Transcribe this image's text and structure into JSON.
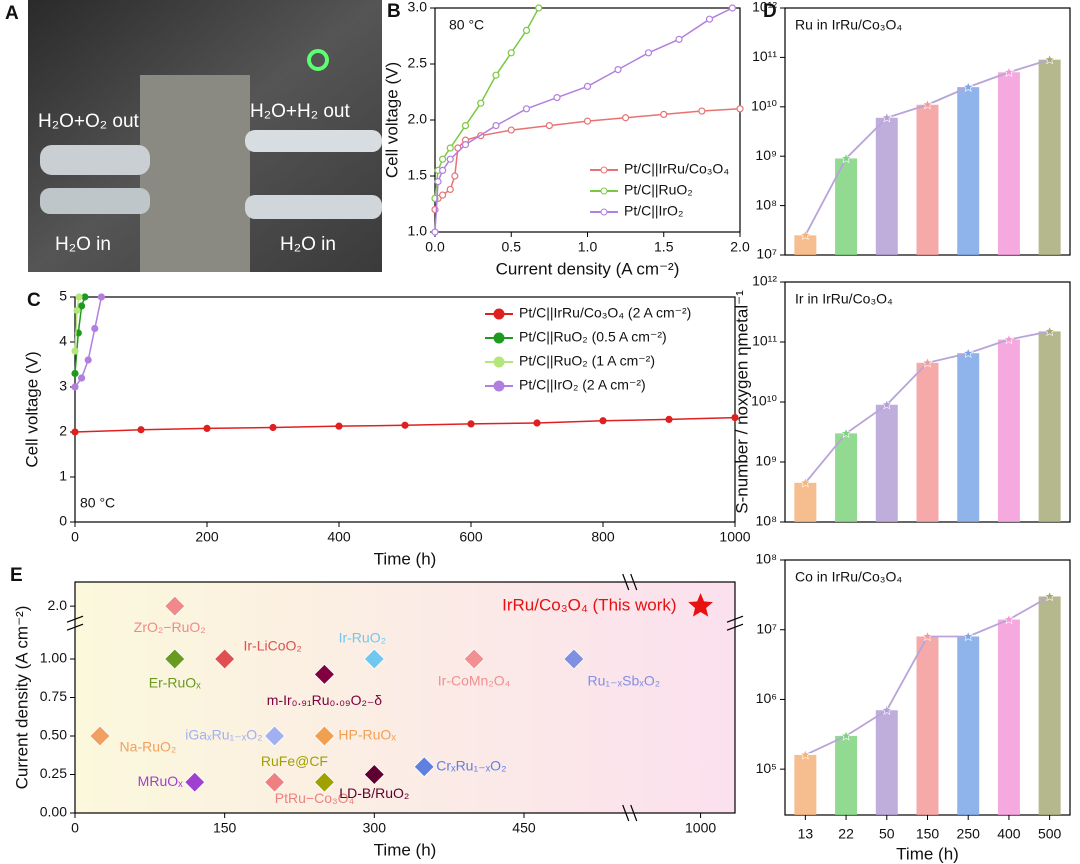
{
  "photo": {
    "panel": "A",
    "labels": [
      "H₂O+O₂ out",
      "H₂O+H₂ out",
      "H₂O in",
      "H₂O in"
    ]
  },
  "chart_data": [
    {
      "type": "line",
      "panel": "B",
      "annotation": "80 °C",
      "xlabel": "Current density (A cm⁻²)",
      "ylabel": "Cell voltage (V)",
      "xlim": [
        0,
        2
      ],
      "ylim": [
        1,
        3
      ],
      "xticks": [
        {
          "value": 0,
          "label": "0.0"
        },
        {
          "value": 0.5,
          "label": "0.5"
        },
        {
          "value": 1,
          "label": "1.0"
        },
        {
          "value": 1.5,
          "label": "1.5"
        },
        {
          "value": 2,
          "label": "2.0"
        }
      ],
      "yticks": [
        {
          "value": 1,
          "label": "1.0"
        },
        {
          "value": 1.5,
          "label": "1.5"
        },
        {
          "value": 2,
          "label": "2.0"
        },
        {
          "value": 2.5,
          "label": "2.5"
        },
        {
          "value": 3,
          "label": "3.0"
        }
      ],
      "legend": "lower right",
      "series": [
        {
          "name": "Pt/C||IrRu/Co₃O₄",
          "color": "#e87272",
          "x": [
            0,
            0.02,
            0.05,
            0.1,
            0.13,
            0.15,
            0.2,
            0.3,
            0.5,
            0.75,
            1.0,
            1.25,
            1.5,
            1.75,
            2.0
          ],
          "values": [
            1.2,
            1.3,
            1.33,
            1.38,
            1.5,
            1.75,
            1.82,
            1.86,
            1.91,
            1.95,
            1.99,
            2.02,
            2.05,
            2.08,
            2.1
          ]
        },
        {
          "name": "Pt/C||RuO₂",
          "color": "#7ac943",
          "x": [
            0,
            0.02,
            0.05,
            0.1,
            0.2,
            0.3,
            0.4,
            0.5,
            0.6,
            0.68
          ],
          "values": [
            1.3,
            1.55,
            1.65,
            1.75,
            1.95,
            2.15,
            2.4,
            2.6,
            2.8,
            3.0
          ]
        },
        {
          "name": "Pt/C||IrO₂",
          "color": "#b07fe0",
          "x": [
            0,
            0.02,
            0.05,
            0.1,
            0.2,
            0.4,
            0.6,
            0.8,
            1.0,
            1.2,
            1.4,
            1.6,
            1.8,
            1.95
          ],
          "values": [
            1.0,
            1.45,
            1.55,
            1.65,
            1.78,
            1.95,
            2.1,
            2.2,
            2.3,
            2.45,
            2.6,
            2.72,
            2.9,
            3.0
          ]
        }
      ]
    },
    {
      "type": "line",
      "panel": "C",
      "annotation": "80 °C",
      "xlabel": "Time (h)",
      "ylabel": "Cell voltage (V)",
      "xlim": [
        0,
        1000
      ],
      "ylim": [
        0,
        5
      ],
      "xticks": [
        0,
        200,
        400,
        600,
        800,
        1000
      ],
      "yticks": [
        0,
        1,
        2,
        3,
        4,
        5
      ],
      "legend": "upper right",
      "series": [
        {
          "name": "Pt/C||IrRu/Co₃O₄ (2 A cm⁻²)",
          "color": "#e02020",
          "x": [
            0,
            100,
            200,
            300,
            400,
            500,
            600,
            700,
            800,
            900,
            1000
          ],
          "values": [
            2.0,
            2.05,
            2.08,
            2.1,
            2.13,
            2.15,
            2.18,
            2.2,
            2.25,
            2.28,
            2.32
          ]
        },
        {
          "name": "Pt/C||RuO₂ (0.5 A cm⁻²)",
          "color": "#1f9a1f",
          "x": [
            0,
            5,
            10,
            15
          ],
          "values": [
            3.3,
            4.2,
            4.8,
            5.0
          ]
        },
        {
          "name": "Pt/C||RuO₂ (1 A cm⁻²)",
          "color": "#b5e67a",
          "x": [
            0,
            3,
            6
          ],
          "values": [
            3.8,
            4.7,
            5.0
          ]
        },
        {
          "name": "Pt/C||IrO₂ (2 A cm⁻²)",
          "color": "#b07fe0",
          "x": [
            0,
            10,
            20,
            30,
            40
          ],
          "values": [
            3.0,
            3.2,
            3.6,
            4.3,
            5.0
          ]
        }
      ]
    },
    {
      "type": "bar",
      "panel": "D",
      "title": "Ru in IrRu/Co₃O₄",
      "yscale": "log",
      "ylim": [
        10000000.0,
        1000000000000.0
      ],
      "yticks": [
        {
          "value": 10000000.0,
          "label": "10⁷"
        },
        {
          "value": 100000000.0,
          "label": "10⁸"
        },
        {
          "value": 1000000000.0,
          "label": "10⁹"
        },
        {
          "value": 10000000000.0,
          "label": "10¹⁰"
        },
        {
          "value": 100000000000.0,
          "label": "10¹¹"
        },
        {
          "value": 1000000000000.0,
          "label": "10¹²"
        }
      ],
      "colors": [
        "#f5b27a",
        "#7fd37f",
        "#b49fd6",
        "#f59a9a",
        "#7ba7e8",
        "#f59ad8",
        "#a8ab78"
      ],
      "line_color": "#b9a3d9",
      "values": [
        25000000.0,
        900000000.0,
        6000000000.0,
        11000000000.0,
        25000000000.0,
        50000000000.0,
        90000000000.0
      ]
    },
    {
      "type": "bar",
      "ylabel": "S-number / noxygen ηmetal⁻¹",
      "title": "Ir in IrRu/Co₃O₄",
      "yscale": "log",
      "ylim": [
        100000000.0,
        1000000000000.0
      ],
      "yticks": [
        {
          "value": 100000000.0,
          "label": "10⁸"
        },
        {
          "value": 1000000000.0,
          "label": "10⁹"
        },
        {
          "value": 10000000000.0,
          "label": "10¹⁰"
        },
        {
          "value": 100000000000.0,
          "label": "10¹¹"
        },
        {
          "value": 1000000000000.0,
          "label": "10¹²"
        }
      ],
      "colors": [
        "#f5b27a",
        "#7fd37f",
        "#b49fd6",
        "#f59a9a",
        "#7ba7e8",
        "#f59ad8",
        "#a8ab78"
      ],
      "line_color": "#b9a3d9",
      "values": [
        450000000.0,
        3000000000.0,
        9000000000.0,
        45000000000.0,
        65000000000.0,
        110000000000.0,
        150000000000.0
      ]
    },
    {
      "type": "bar",
      "title": "Co in IrRu/Co₃O₄",
      "xlabel": "Time (h)",
      "yscale": "log",
      "ylim": [
        22000,
        100000000.0
      ],
      "categories": [
        "13",
        "22",
        "50",
        "150",
        "250",
        "400",
        "500"
      ],
      "yticks": [
        {
          "value": 100000.0,
          "label": "10⁵"
        },
        {
          "value": 1000000.0,
          "label": "10⁶"
        },
        {
          "value": 10000000.0,
          "label": "10⁷"
        },
        {
          "value": 100000000.0,
          "label": "10⁸"
        }
      ],
      "colors": [
        "#f5b27a",
        "#7fd37f",
        "#b49fd6",
        "#f59a9a",
        "#7ba7e8",
        "#f59ad8",
        "#a8ab78"
      ],
      "line_color": "#b9a3d9",
      "values": [
        160000.0,
        300000.0,
        700000.0,
        8000000.0,
        8000000.0,
        14000000.0,
        30000000.0
      ]
    },
    {
      "type": "scatter",
      "panel": "E",
      "xlabel": "Time (h)",
      "ylabel": "Current density (A cm⁻²)",
      "xlim": [
        0,
        1035
      ],
      "xbreak": [
        555,
        930
      ],
      "ylim": [
        0,
        2.2
      ],
      "ybreak": [
        1.2,
        1.9
      ],
      "xticks": [
        0,
        150,
        300,
        450,
        1000
      ],
      "yticks": [
        {
          "value": 0,
          "label": "0.00"
        },
        0.25,
        {
          "value": 0.5,
          "label": "0.50"
        },
        0.75,
        {
          "value": 1,
          "label": "1.00"
        },
        {
          "value": 2,
          "label": "2.0"
        }
      ],
      "points": [
        {
          "name": "ZrO₂−RuO₂",
          "x": 100,
          "y": 2.0,
          "color": "#f08a8a"
        },
        {
          "name": "Er-RuOₓ",
          "x": 100,
          "y": 1.0,
          "color": "#6a9a20"
        },
        {
          "name": "Ir-LiCoO₂",
          "x": 150,
          "y": 1.0,
          "color": "#e05050"
        },
        {
          "name": "m-Ir₀.₉₁Ru₀.₀₉O₂₋δ",
          "x": 250,
          "y": 0.9,
          "color": "#800040"
        },
        {
          "name": "Ir-RuO₂",
          "x": 300,
          "y": 1.0,
          "color": "#70c8f0"
        },
        {
          "name": "Ir-CoMn₂O₄",
          "x": 400,
          "y": 1.0,
          "color": "#f09090"
        },
        {
          "name": "Ru₁₋ₓSbₓO₂",
          "x": 500,
          "y": 1.0,
          "color": "#8090e0"
        },
        {
          "name": "Na-RuO₂",
          "x": 25,
          "y": 0.5,
          "color": "#f0a060"
        },
        {
          "name": "iGaₓRu₁₋ₓO₂",
          "x": 200,
          "y": 0.5,
          "color": "#a0b0f0"
        },
        {
          "name": "HP-RuOₓ",
          "x": 250,
          "y": 0.5,
          "color": "#f0a050"
        },
        {
          "name": "RuFe@CF",
          "x": 250,
          "y": 0.2,
          "color": "#a0a000"
        },
        {
          "name": "MRuOₓ",
          "x": 120,
          "y": 0.2,
          "color": "#a040d0"
        },
        {
          "name": "PtRu−Co₃O₄",
          "x": 200,
          "y": 0.2,
          "color": "#f08080"
        },
        {
          "name": "LD-B/RuO₂",
          "x": 300,
          "y": 0.25,
          "color": "#600030"
        },
        {
          "name": "CrₓRu₁₋ₓO₂",
          "x": 350,
          "y": 0.3,
          "color": "#6080e0"
        },
        {
          "name": "IrRu/Co₃O₄ (This work)",
          "x": 1000,
          "y": 2.0,
          "color": "#e81010",
          "marker": "star"
        }
      ]
    }
  ]
}
